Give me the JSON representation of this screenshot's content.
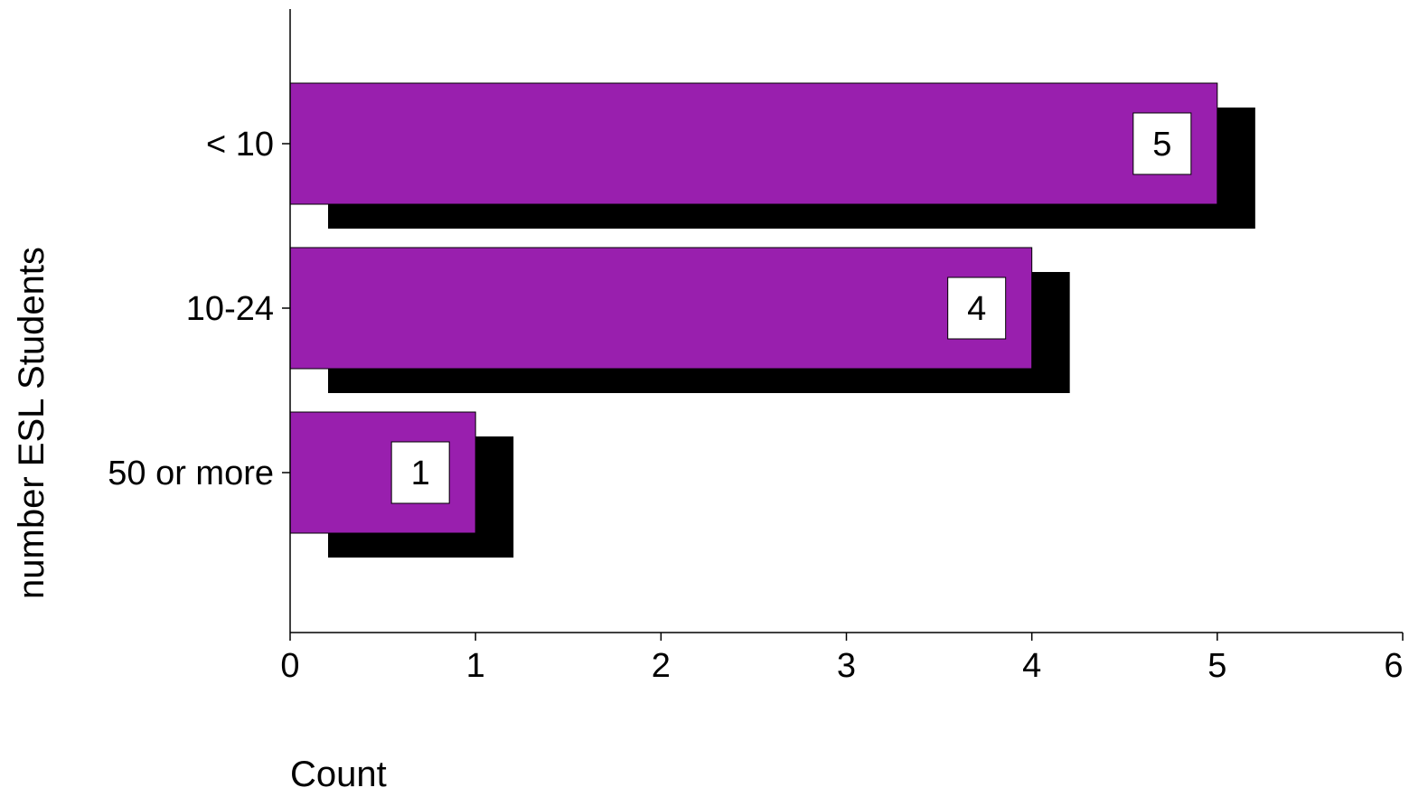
{
  "chart_data": {
    "type": "bar",
    "orientation": "horizontal",
    "categories": [
      "< 10",
      "10-24",
      "50 or more"
    ],
    "values": [
      5,
      4,
      1
    ],
    "data_labels": [
      "5",
      "4",
      "1"
    ],
    "title": "",
    "xlabel": "Count",
    "ylabel": "number ESL Students",
    "xlim": [
      0,
      6
    ],
    "x_ticks": [
      0,
      1,
      2,
      3,
      4,
      5,
      6
    ],
    "x_tick_labels": [
      "0",
      "1",
      "2",
      "3",
      "4",
      "5",
      "6"
    ],
    "grid": false,
    "legend": "none",
    "bar_color": "#991fae",
    "shadow_color": "#000000",
    "label_box_color": "#ffffff"
  }
}
